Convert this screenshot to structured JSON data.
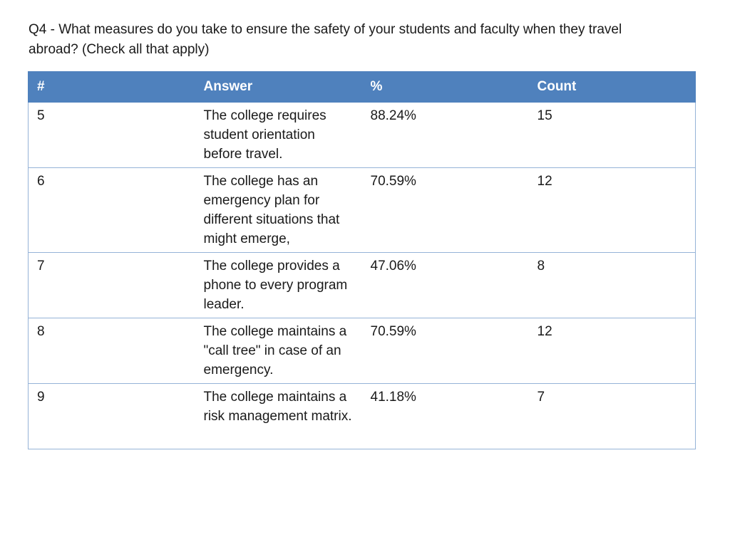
{
  "question": "Q4 - What measures do you take to ensure the safety of your students and faculty when they travel abroad? (Check all that apply)",
  "table": {
    "headers": [
      "#",
      "Answer",
      "%",
      "Count"
    ],
    "rows": [
      {
        "num": "5",
        "answer": "The college requires student orientation before travel.",
        "percent": "88.24%",
        "count": "15"
      },
      {
        "num": "6",
        "answer": "The college has an emergency plan for different situations that might emerge,",
        "percent": "70.59%",
        "count": "12"
      },
      {
        "num": "7",
        "answer": "The college provides a phone to every program leader.",
        "percent": "47.06%",
        "count": "8"
      },
      {
        "num": "8",
        "answer": "The college maintains a \"call tree\" in case of an emergency.",
        "percent": "70.59%",
        "count": "12"
      },
      {
        "num": "9",
        "answer": "The college maintains a risk management matrix.",
        "percent": "41.18%",
        "count": "7"
      }
    ]
  },
  "colors": {
    "header_background": "#4f81bd",
    "header_text": "#ffffff",
    "row_border": "#95b3d7"
  }
}
